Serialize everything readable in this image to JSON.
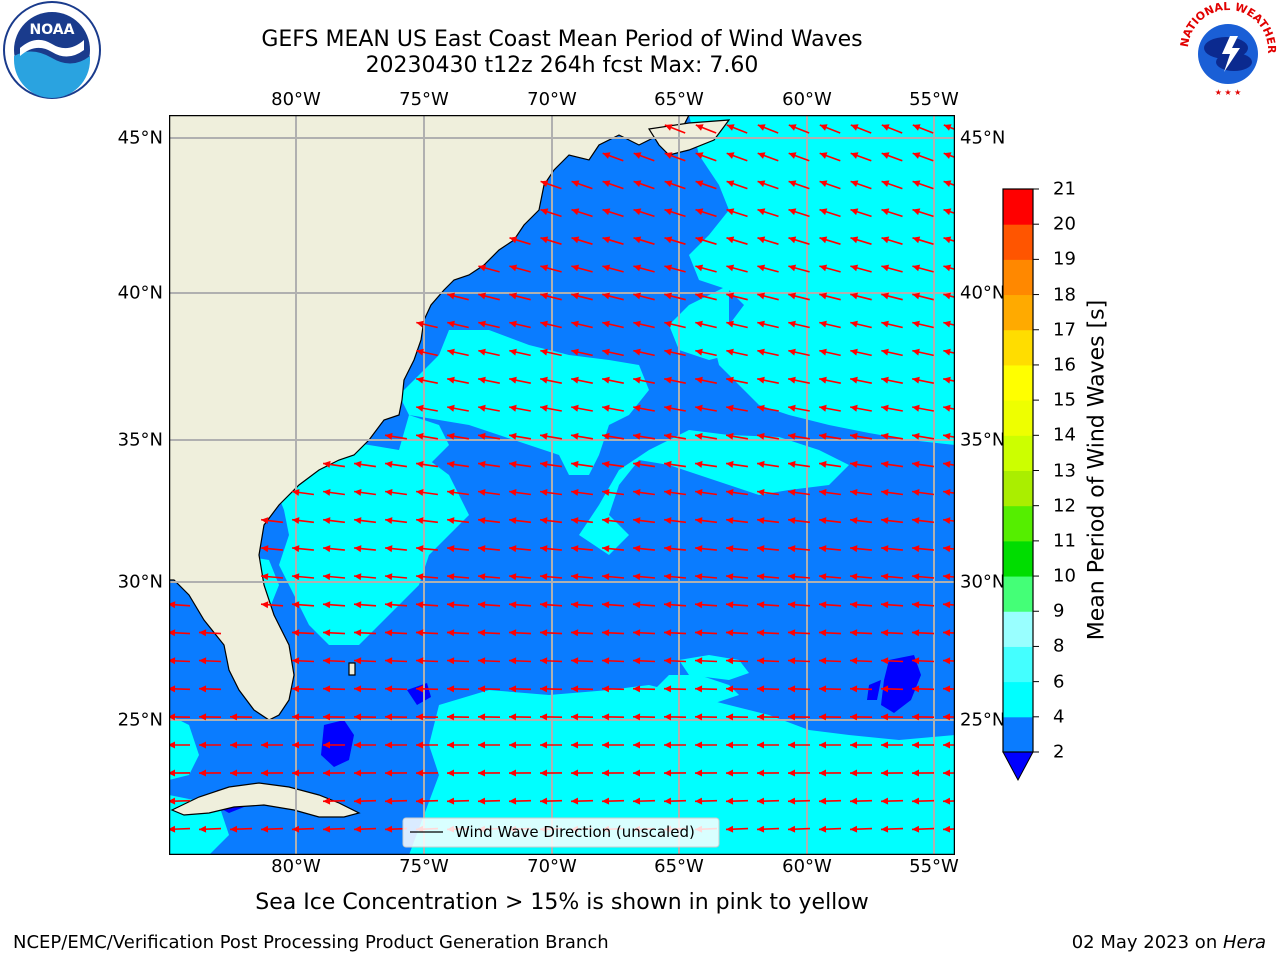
{
  "header": {
    "title": "GEFS MEAN US East Coast Mean Period of Wind Waves",
    "subtitle": "20230430 t12z 264h fcst   Max: 7.60"
  },
  "logos": {
    "left": "NOAA",
    "right_top": "NATIONAL WEATHER SERVICE"
  },
  "map": {
    "lon_labels": [
      "80°W",
      "75°W",
      "70°W",
      "65°W",
      "60°W",
      "55°W"
    ],
    "lat_labels": [
      "45°N",
      "40°N",
      "35°N",
      "30°N",
      "25°N"
    ],
    "legend_label": "Wind Wave Direction (unscaled)",
    "arrow_color": "#ff0000",
    "land_color": "#efefdc"
  },
  "colorbar": {
    "label": "Mean Period of Wind Waves [s]",
    "ticks": [
      "2",
      "4",
      "6",
      "8",
      "9",
      "10",
      "11",
      "12",
      "13",
      "14",
      "15",
      "16",
      "17",
      "18",
      "19",
      "20",
      "21"
    ],
    "colors": [
      "#0a7cff",
      "#00ffff",
      "#44ffff",
      "#99ffff",
      "#44ff77",
      "#00dd00",
      "#55ee00",
      "#aaee00",
      "#ccff00",
      "#eeff00",
      "#ffff00",
      "#ffdd00",
      "#ffaa00",
      "#ff8800",
      "#ff5500",
      "#ff2200",
      "#ff0000"
    ],
    "under_color": "#0000ff"
  },
  "footer": {
    "ice_note": "Sea Ice Concentration > 15% is shown in pink to yellow",
    "credit": "NCEP/EMC/Verification Post Processing Product Generation Branch",
    "date": "02 May 2023 on ",
    "machine": "Hera"
  }
}
